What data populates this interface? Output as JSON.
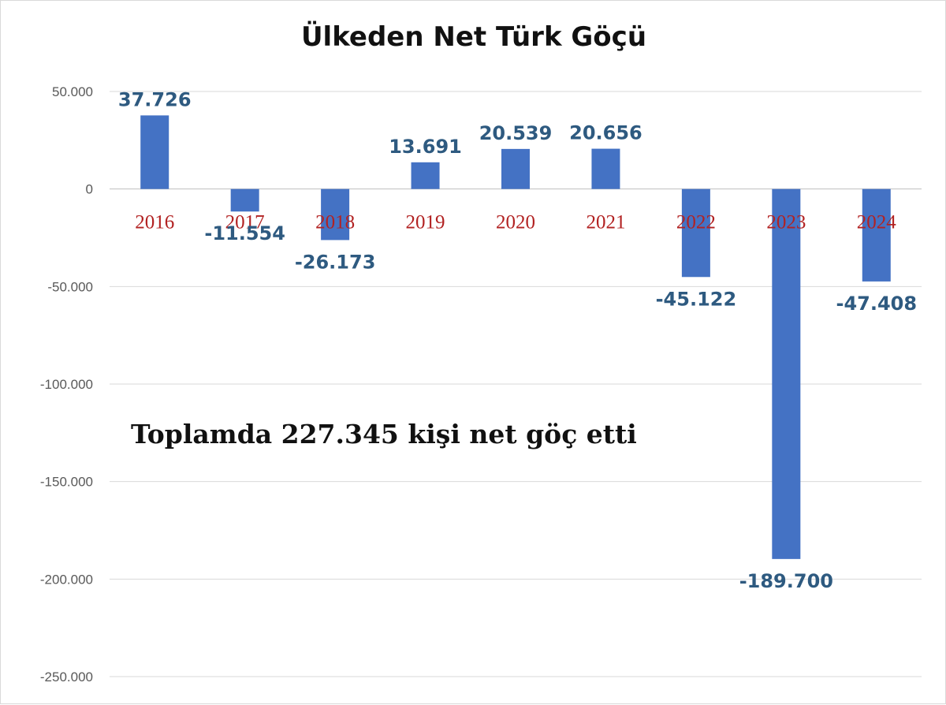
{
  "chart_data": {
    "type": "bar",
    "title": "Ülkeden Net Türk Göçü",
    "categories": [
      "2016",
      "2017",
      "2018",
      "2019",
      "2020",
      "2021",
      "2022",
      "2023",
      "2024"
    ],
    "values": [
      37726,
      -11554,
      -26173,
      13691,
      20539,
      20656,
      -45122,
      -189700,
      -47408
    ],
    "data_labels": [
      "37.726",
      "-11.554",
      "-26.173",
      "13.691",
      "20.539",
      "20.656",
      "-45.122",
      "-189.700",
      "-47.408"
    ],
    "y_ticks": [
      50000,
      0,
      -50000,
      -100000,
      -150000,
      -200000,
      -250000
    ],
    "y_tick_labels": [
      "50.000",
      "0",
      "-50.000",
      "-100.000",
      "-150.000",
      "-200.000",
      "-250.000"
    ],
    "ylim": [
      -250000,
      50000
    ],
    "grid": true,
    "legend": "none",
    "bar_color": "#4472c4",
    "annotation": "Toplamda 227.345 kişi net göç etti",
    "xlabel": "",
    "ylabel": ""
  }
}
